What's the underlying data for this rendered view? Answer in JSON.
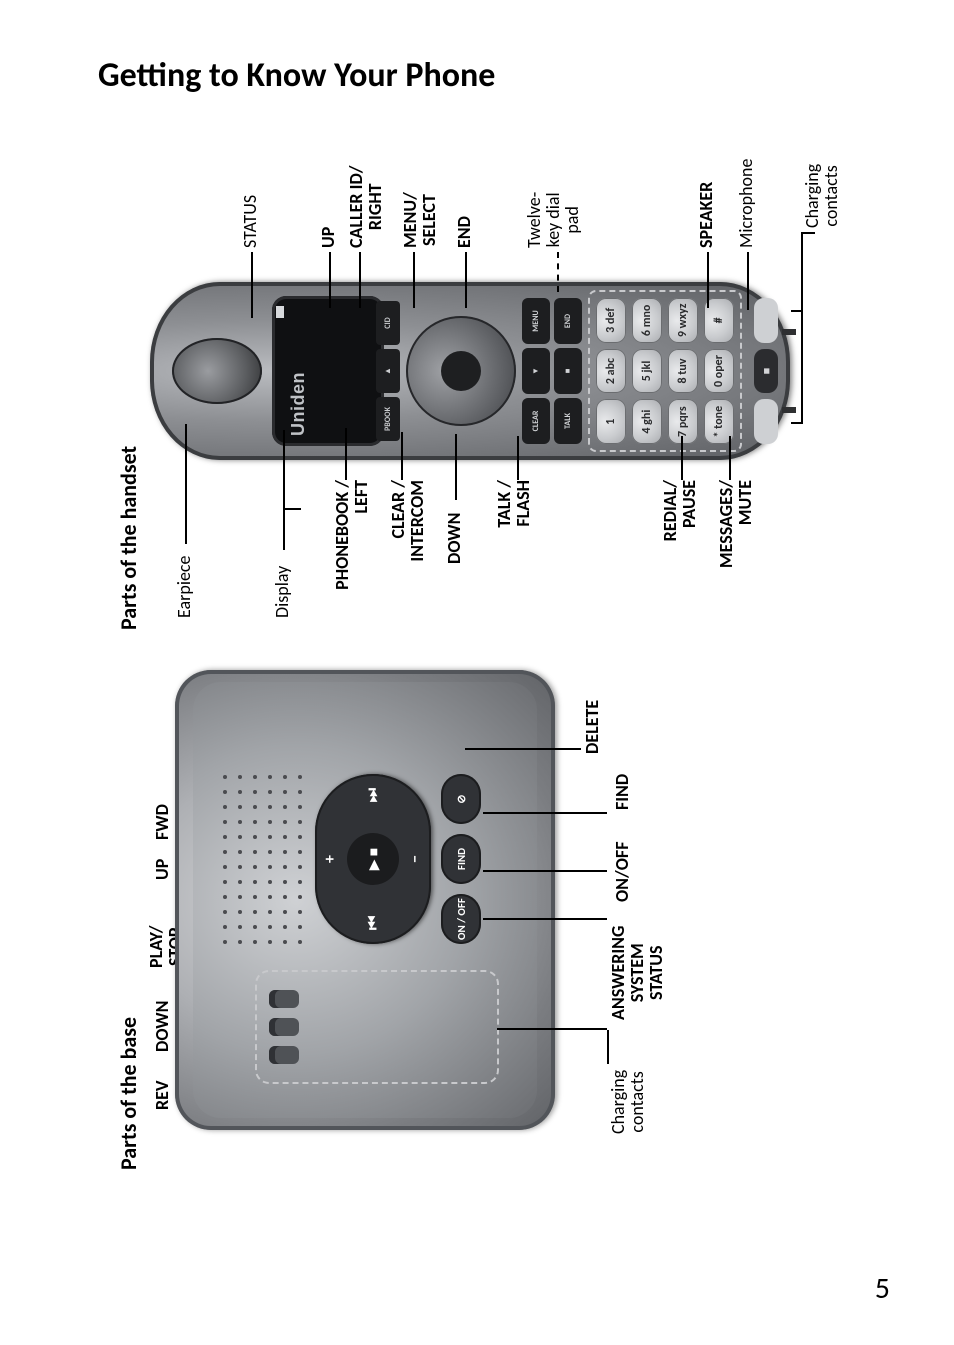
{
  "page": {
    "title": "Getting to Know Your Phone",
    "number": "5"
  },
  "base": {
    "header": "Parts of the base",
    "labels": {
      "rev": "REV",
      "down": "DOWN",
      "play_stop": "PLAY/\nSTOP",
      "up": "UP",
      "fwd": "FWD",
      "charging_contacts": "Charging\ncontacts",
      "answering_system_status": "ANSWERING\nSYSTEM\nSTATUS",
      "on_off": "ON/OFF",
      "find": "FIND",
      "delete": "DELETE"
    },
    "buttons": {
      "center": "▶ ■",
      "up": "+",
      "down": "−",
      "left": "⏮",
      "right": "⏭",
      "onoff": "ON / OFF",
      "find": "FIND",
      "delete": "⊘"
    }
  },
  "handset": {
    "header": "Parts of the handset",
    "brand": "Uniden",
    "labels_left": {
      "earpiece": "Earpiece",
      "display": "Display",
      "phonebook_left": "PHONEBOOK /\nLEFT",
      "clear_intercom": "CLEAR /\nINTERCOM",
      "down": "DOWN",
      "talk_flash": "TALK /\nFLASH",
      "redial_pause": "REDIAL/\nPAUSE",
      "messages_mute": "MESSAGES/\nMUTE"
    },
    "labels_right": {
      "status": "STATUS",
      "up": "UP",
      "callerid_right": "CALLER ID/\nRIGHT",
      "menu_select": "MENU/\nSELECT",
      "end": "END",
      "twelve_key": "Twelve-\nkey dial\npad",
      "speaker": "SPEAKER",
      "microphone": "Microphone",
      "charging_contacts": "Charging\ncontacts"
    },
    "softkeys": {
      "left": "PBOOK",
      "mid": "▲",
      "right": "CID"
    },
    "funckeys": {
      "r1a": "CLEAR",
      "r1b": "▼",
      "r1c": "MENU",
      "r2a": "TALK",
      "r2b": "■",
      "r2c": "END"
    },
    "keypad": [
      "1",
      "2 abc",
      "3 def",
      "4 ghi",
      "5 jkl",
      "6 mno",
      "7 pqrs",
      "8 tuv",
      "9 wxyz",
      "* tone",
      "0 oper",
      "#"
    ],
    "bottom_center": "■"
  },
  "style": {
    "page_bg": "#ffffff",
    "ink": "#000000",
    "title_fontsize": 34,
    "section_fontsize": 22,
    "label_fontsize": 18,
    "label_thin_fontsize": 18,
    "pageno_fontsize": 30,
    "base_gradient": [
      "#d7d8da",
      "#aeb0b4",
      "#7b7d81",
      "#606266"
    ],
    "base_button_bg": "#303236",
    "handset_gradient": [
      "#babcc0",
      "#8d8f93",
      "#5c5e62"
    ],
    "display_bg": "#0f1012",
    "display_text": "#bfc2c6",
    "key_gradient": [
      "#e9eaec",
      "#c9cbce",
      "#a8aaae"
    ],
    "dashed_border": "#c8c9cc"
  }
}
